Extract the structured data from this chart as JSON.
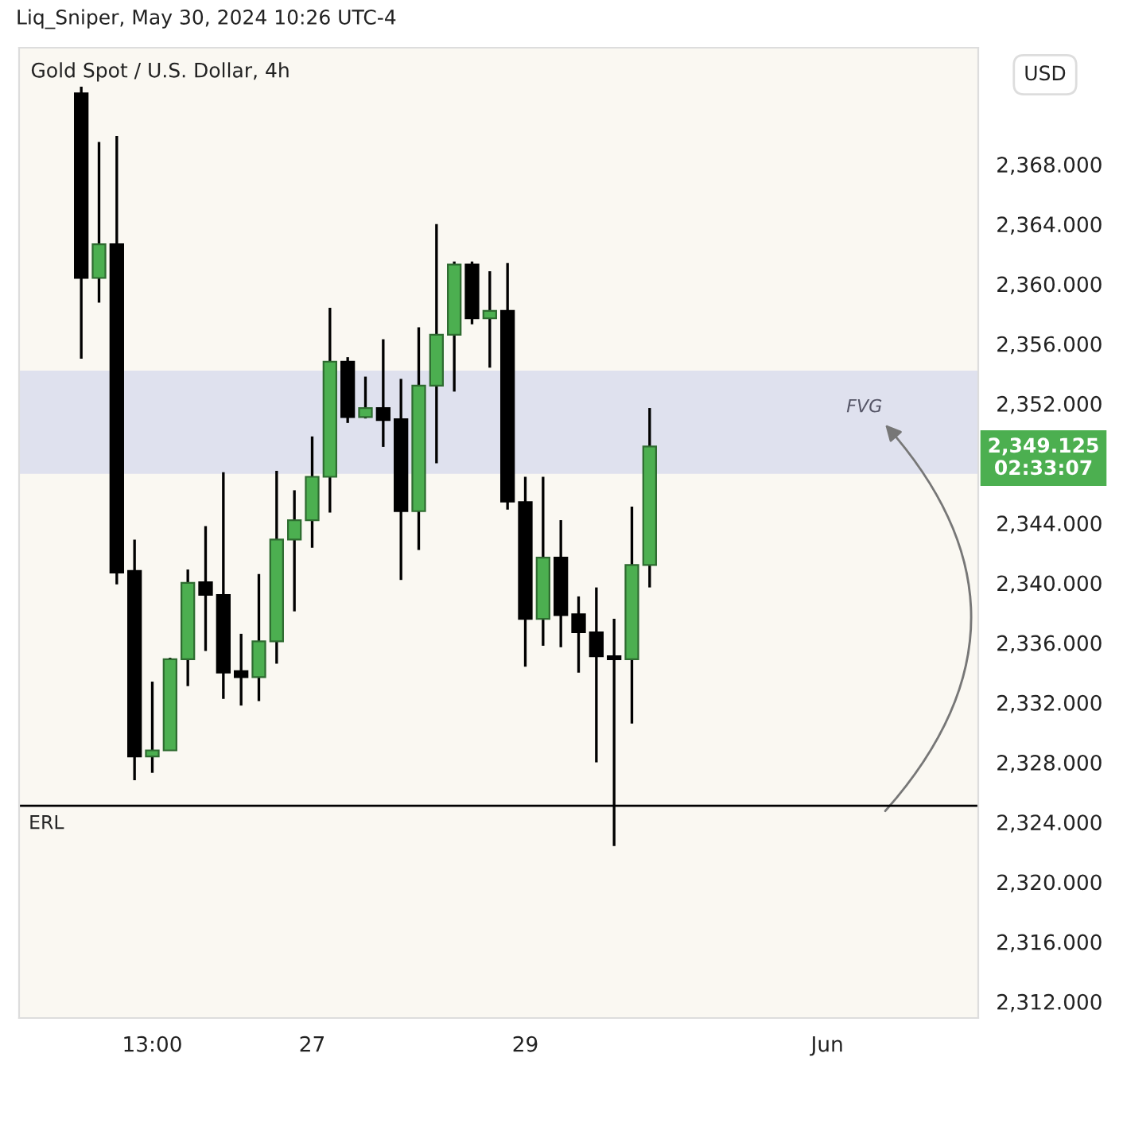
{
  "chart_data": {
    "type": "candlestick",
    "title": "Gold Spot / U.S. Dollar, 4h",
    "categories": [
      null,
      null,
      null,
      null,
      null,
      null,
      null,
      "13:00",
      null,
      null,
      null,
      null,
      null,
      null,
      null,
      null,
      "27",
      null,
      null,
      null,
      null,
      null,
      null,
      null,
      null,
      null,
      null,
      null,
      "29",
      null,
      null,
      null,
      null,
      null,
      null,
      null,
      null,
      null,
      null,
      null,
      null,
      null,
      null,
      null,
      null,
      "Jun",
      null,
      null,
      null,
      null,
      null,
      null,
      null,
      null
    ],
    "ohlc": [
      null,
      null,
      null,
      [
        2372.75,
        2373.2,
        2355.0,
        2360.4
      ],
      [
        2360.4,
        2369.5,
        2358.75,
        2362.65
      ],
      [
        2362.65,
        2369.9,
        2339.9,
        2340.7
      ],
      [
        2340.8,
        2342.9,
        2326.8,
        2328.4
      ],
      [
        2328.4,
        2333.4,
        2327.3,
        2328.8
      ],
      [
        2328.8,
        2335.0,
        2328.8,
        2334.9
      ],
      [
        2334.9,
        2340.9,
        2333.1,
        2340.0
      ],
      [
        2340.05,
        2343.8,
        2335.45,
        2339.2
      ],
      [
        2339.2,
        2347.4,
        2332.25,
        2334.0
      ],
      [
        2334.1,
        2336.6,
        2331.8,
        2333.7
      ],
      [
        2333.7,
        2340.6,
        2332.1,
        2336.1
      ],
      [
        2336.1,
        2347.5,
        2334.6,
        2342.9
      ],
      [
        2342.9,
        2346.2,
        2338.1,
        2344.2
      ],
      [
        2344.2,
        2349.8,
        2342.35,
        2347.1
      ],
      [
        2347.1,
        2358.4,
        2344.7,
        2354.8
      ],
      [
        2354.8,
        2355.1,
        2350.7,
        2351.1
      ],
      [
        2351.1,
        2353.8,
        2351.0,
        2351.7
      ],
      [
        2351.7,
        2356.3,
        2349.1,
        2350.9
      ],
      [
        2350.95,
        2353.65,
        2340.2,
        2344.8
      ],
      [
        2344.8,
        2357.1,
        2342.2,
        2353.2
      ],
      [
        2353.2,
        2364.0,
        2348.0,
        2356.6
      ],
      [
        2356.6,
        2361.5,
        2352.8,
        2361.3
      ],
      [
        2361.3,
        2361.5,
        2357.3,
        2357.7
      ],
      [
        2357.7,
        2360.85,
        2354.4,
        2358.2
      ],
      [
        2358.2,
        2361.4,
        2344.9,
        2345.45
      ],
      [
        2345.4,
        2347.1,
        2334.4,
        2337.6
      ],
      [
        2337.6,
        2347.1,
        2335.8,
        2341.7
      ],
      [
        2341.7,
        2344.2,
        2335.7,
        2337.85
      ],
      [
        2337.9,
        2339.1,
        2334.0,
        2336.7
      ],
      [
        2336.7,
        2339.7,
        2328.0,
        2335.1
      ],
      [
        2335.1,
        2337.6,
        2322.4,
        2334.9
      ],
      [
        2334.9,
        2345.1,
        2330.6,
        2341.2
      ],
      [
        2341.2,
        2351.7,
        2339.7,
        2349.125
      ],
      null,
      null,
      null,
      null,
      null,
      null,
      null,
      null,
      null,
      null,
      null,
      null,
      null,
      null,
      null,
      null,
      null,
      null
    ],
    "ylim": [
      2310.9,
      2375.8
    ],
    "yticks": [
      {
        "value": 2312,
        "label": "2,312.000"
      },
      {
        "value": 2316,
        "label": "2,316.000"
      },
      {
        "value": 2320,
        "label": "2,320.000"
      },
      {
        "value": 2324,
        "label": "2,324.000"
      },
      {
        "value": 2328,
        "label": "2,328.000"
      },
      {
        "value": 2332,
        "label": "2,332.000"
      },
      {
        "value": 2336,
        "label": "2,336.000"
      },
      {
        "value": 2340,
        "label": "2,340.000"
      },
      {
        "value": 2344,
        "label": "2,344.000"
      },
      {
        "value": 2352,
        "label": "2,352.000"
      },
      {
        "value": 2356,
        "label": "2,356.000"
      },
      {
        "value": 2360,
        "label": "2,360.000"
      },
      {
        "value": 2364,
        "label": "2,364.000"
      },
      {
        "value": 2368,
        "label": "2,368.000"
      }
    ],
    "bands": [
      {
        "axis": "y",
        "from": 2347.3,
        "to": 2354.2,
        "label": "FVG",
        "color": "#dfe1ee"
      }
    ],
    "ref_lines": [
      {
        "axis": "y",
        "value": 2325.1,
        "label": "ERL",
        "color": "#000000"
      }
    ],
    "annotations": [
      "Liq_Sniper, May 30, 2024 10:26 UTC-4",
      "2,349.125\n02:33:07",
      "USD"
    ],
    "grid": false
  }
}
